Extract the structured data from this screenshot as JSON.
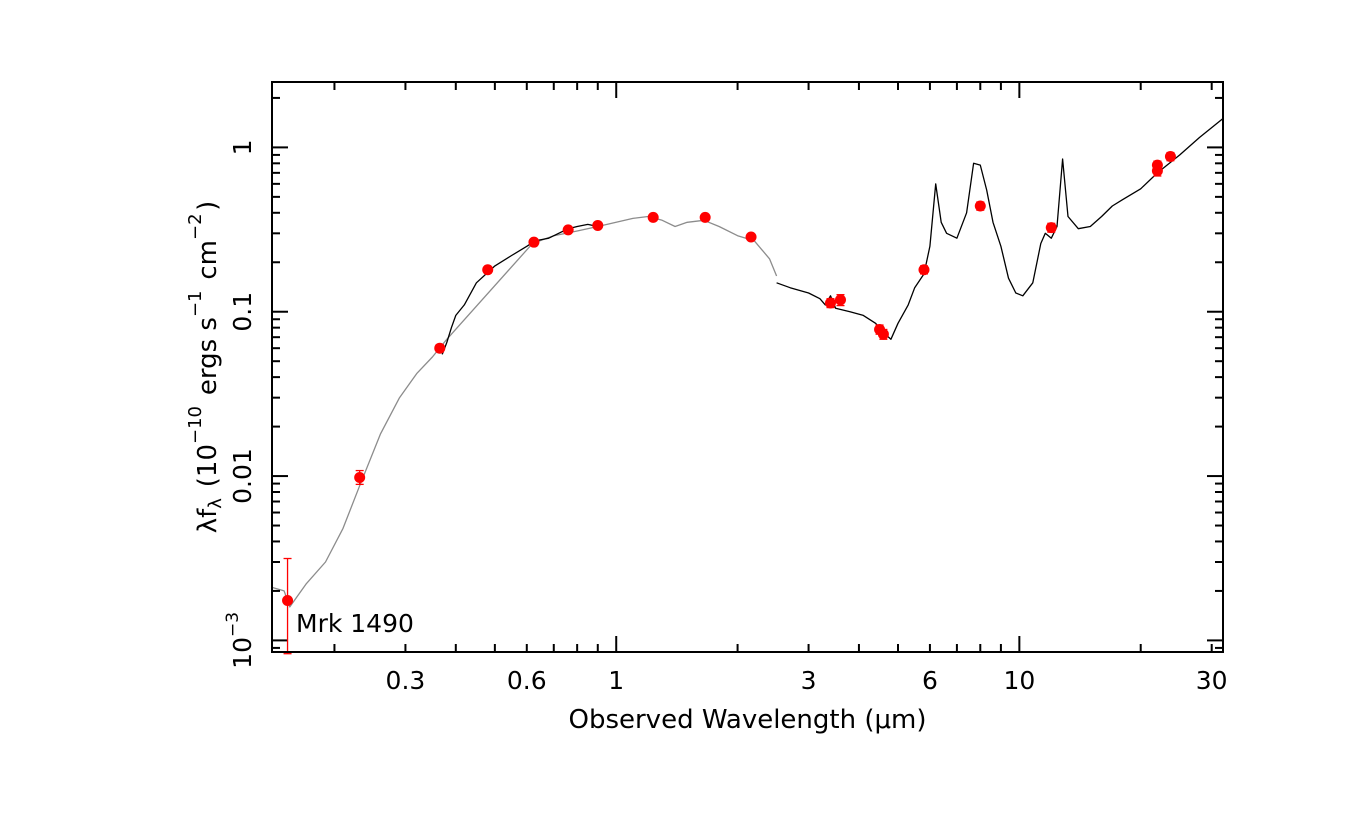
{
  "chart_data": {
    "type": "scatter",
    "title": "",
    "annotation": "Mrk 1490",
    "xlabel": "Observed Wavelength (μm)",
    "ylabel": "λf_λ (10^-10 ergs s^-1 cm^-2)",
    "x_scale": "log",
    "y_scale": "log",
    "xlim": [
      0.14,
      32
    ],
    "ylim": [
      0.00085,
      2.5
    ],
    "x_ticks": [
      {
        "value": 0.3,
        "label": "0.3"
      },
      {
        "value": 0.6,
        "label": "0.6"
      },
      {
        "value": 1,
        "label": "1"
      },
      {
        "value": 3,
        "label": "3"
      },
      {
        "value": 6,
        "label": "6"
      },
      {
        "value": 10,
        "label": "10"
      },
      {
        "value": 30,
        "label": "30"
      }
    ],
    "y_ticks": [
      {
        "value": 0.001,
        "label": "10^-3"
      },
      {
        "value": 0.01,
        "label": "0.01"
      },
      {
        "value": 0.1,
        "label": "0.1"
      },
      {
        "value": 1,
        "label": "1"
      }
    ],
    "grid": false,
    "colors": {
      "points": "#ff0000",
      "observed_spectrum": "#000000",
      "model_spectrum": "#8c8c8c"
    },
    "photometry": [
      {
        "x": 0.153,
        "y": 0.00175,
        "yerr_low": 0.00083,
        "yerr_high": 0.00315
      },
      {
        "x": 0.231,
        "y": 0.0098,
        "yerr_low": 0.0089,
        "yerr_high": 0.0108
      },
      {
        "x": 0.365,
        "y": 0.06,
        "yerr_low": 0.057,
        "yerr_high": 0.063
      },
      {
        "x": 0.48,
        "y": 0.18,
        "yerr_low": 0.172,
        "yerr_high": 0.188
      },
      {
        "x": 0.625,
        "y": 0.265,
        "yerr_low": 0.255,
        "yerr_high": 0.275
      },
      {
        "x": 0.76,
        "y": 0.315,
        "yerr_low": 0.303,
        "yerr_high": 0.327
      },
      {
        "x": 0.9,
        "y": 0.335,
        "yerr_low": 0.322,
        "yerr_high": 0.348
      },
      {
        "x": 1.235,
        "y": 0.375,
        "yerr_low": 0.358,
        "yerr_high": 0.392
      },
      {
        "x": 1.662,
        "y": 0.375,
        "yerr_low": 0.358,
        "yerr_high": 0.392
      },
      {
        "x": 2.16,
        "y": 0.285,
        "yerr_low": 0.274,
        "yerr_high": 0.296
      },
      {
        "x": 3.4,
        "y": 0.113,
        "yerr_low": 0.106,
        "yerr_high": 0.12
      },
      {
        "x": 3.6,
        "y": 0.118,
        "yerr_low": 0.109,
        "yerr_high": 0.127
      },
      {
        "x": 4.5,
        "y": 0.078,
        "yerr_low": 0.073,
        "yerr_high": 0.083
      },
      {
        "x": 4.6,
        "y": 0.073,
        "yerr_low": 0.068,
        "yerr_high": 0.078
      },
      {
        "x": 5.8,
        "y": 0.18,
        "yerr_low": 0.17,
        "yerr_high": 0.19
      },
      {
        "x": 8.0,
        "y": 0.44,
        "yerr_low": 0.415,
        "yerr_high": 0.465
      },
      {
        "x": 12.0,
        "y": 0.325,
        "yerr_low": 0.305,
        "yerr_high": 0.345
      },
      {
        "x": 22.0,
        "y": 0.72,
        "yerr_low": 0.67,
        "yerr_high": 0.77
      },
      {
        "x": 22.0,
        "y": 0.78,
        "yerr_low": 0.735,
        "yerr_high": 0.825
      },
      {
        "x": 23.7,
        "y": 0.88,
        "yerr_low": 0.83,
        "yerr_high": 0.93
      }
    ],
    "model_spectrum": [
      [
        0.14,
        0.0021
      ],
      [
        0.15,
        0.002
      ],
      [
        0.155,
        0.0016
      ],
      [
        0.17,
        0.0022
      ],
      [
        0.19,
        0.003
      ],
      [
        0.21,
        0.0048
      ],
      [
        0.23,
        0.0085
      ],
      [
        0.26,
        0.018
      ],
      [
        0.29,
        0.03
      ],
      [
        0.32,
        0.042
      ],
      [
        0.35,
        0.053
      ],
      [
        0.38,
        0.068
      ],
      [
        0.38,
        0.068
      ],
      [
        0.62,
        0.26
      ],
      [
        0.62,
        0.26
      ],
      [
        0.7,
        0.29
      ],
      [
        0.8,
        0.31
      ],
      [
        0.9,
        0.33
      ],
      [
        1.0,
        0.35
      ],
      [
        1.1,
        0.37
      ],
      [
        1.2,
        0.38
      ],
      [
        1.3,
        0.36
      ],
      [
        1.4,
        0.33
      ],
      [
        1.5,
        0.35
      ],
      [
        1.65,
        0.36
      ],
      [
        1.8,
        0.33
      ],
      [
        2.0,
        0.29
      ],
      [
        2.2,
        0.27
      ],
      [
        2.4,
        0.21
      ],
      [
        2.5,
        0.165
      ]
    ],
    "observed_spectrum": [
      [
        0.37,
        0.055
      ],
      [
        0.38,
        0.065
      ],
      [
        0.39,
        0.08
      ],
      [
        0.4,
        0.095
      ],
      [
        0.42,
        0.11
      ],
      [
        0.45,
        0.15
      ],
      [
        0.5,
        0.19
      ],
      [
        0.55,
        0.22
      ],
      [
        0.6,
        0.25
      ],
      [
        0.63,
        0.27
      ],
      [
        0.655,
        0.275
      ],
      [
        0.68,
        0.28
      ],
      [
        0.72,
        0.3
      ],
      [
        0.76,
        0.32
      ],
      [
        0.8,
        0.33
      ],
      [
        0.85,
        0.34
      ],
      [
        0.9,
        0.33
      ],
      [
        2.5,
        0.15
      ],
      [
        2.7,
        0.14
      ],
      [
        3.0,
        0.13
      ],
      [
        3.2,
        0.12
      ],
      [
        3.3,
        0.11
      ],
      [
        3.4,
        0.125
      ],
      [
        3.5,
        0.105
      ],
      [
        3.8,
        0.1
      ],
      [
        4.1,
        0.095
      ],
      [
        4.4,
        0.085
      ],
      [
        4.6,
        0.075
      ],
      [
        4.8,
        0.068
      ],
      [
        5.0,
        0.085
      ],
      [
        5.3,
        0.11
      ],
      [
        5.5,
        0.14
      ],
      [
        5.8,
        0.17
      ],
      [
        6.0,
        0.25
      ],
      [
        6.2,
        0.6
      ],
      [
        6.4,
        0.35
      ],
      [
        6.6,
        0.3
      ],
      [
        7.0,
        0.28
      ],
      [
        7.4,
        0.4
      ],
      [
        7.7,
        0.8
      ],
      [
        8.0,
        0.78
      ],
      [
        8.3,
        0.55
      ],
      [
        8.6,
        0.35
      ],
      [
        9.0,
        0.25
      ],
      [
        9.4,
        0.16
      ],
      [
        9.8,
        0.13
      ],
      [
        10.2,
        0.125
      ],
      [
        10.8,
        0.15
      ],
      [
        11.3,
        0.26
      ],
      [
        11.6,
        0.3
      ],
      [
        12.0,
        0.28
      ],
      [
        12.4,
        0.33
      ],
      [
        12.8,
        0.85
      ],
      [
        13.2,
        0.38
      ],
      [
        14.0,
        0.32
      ],
      [
        15.0,
        0.33
      ],
      [
        16.0,
        0.38
      ],
      [
        17.0,
        0.44
      ],
      [
        18.0,
        0.48
      ],
      [
        20.0,
        0.56
      ],
      [
        22.0,
        0.7
      ],
      [
        25.0,
        0.9
      ],
      [
        28.0,
        1.15
      ],
      [
        32.0,
        1.5
      ]
    ]
  }
}
